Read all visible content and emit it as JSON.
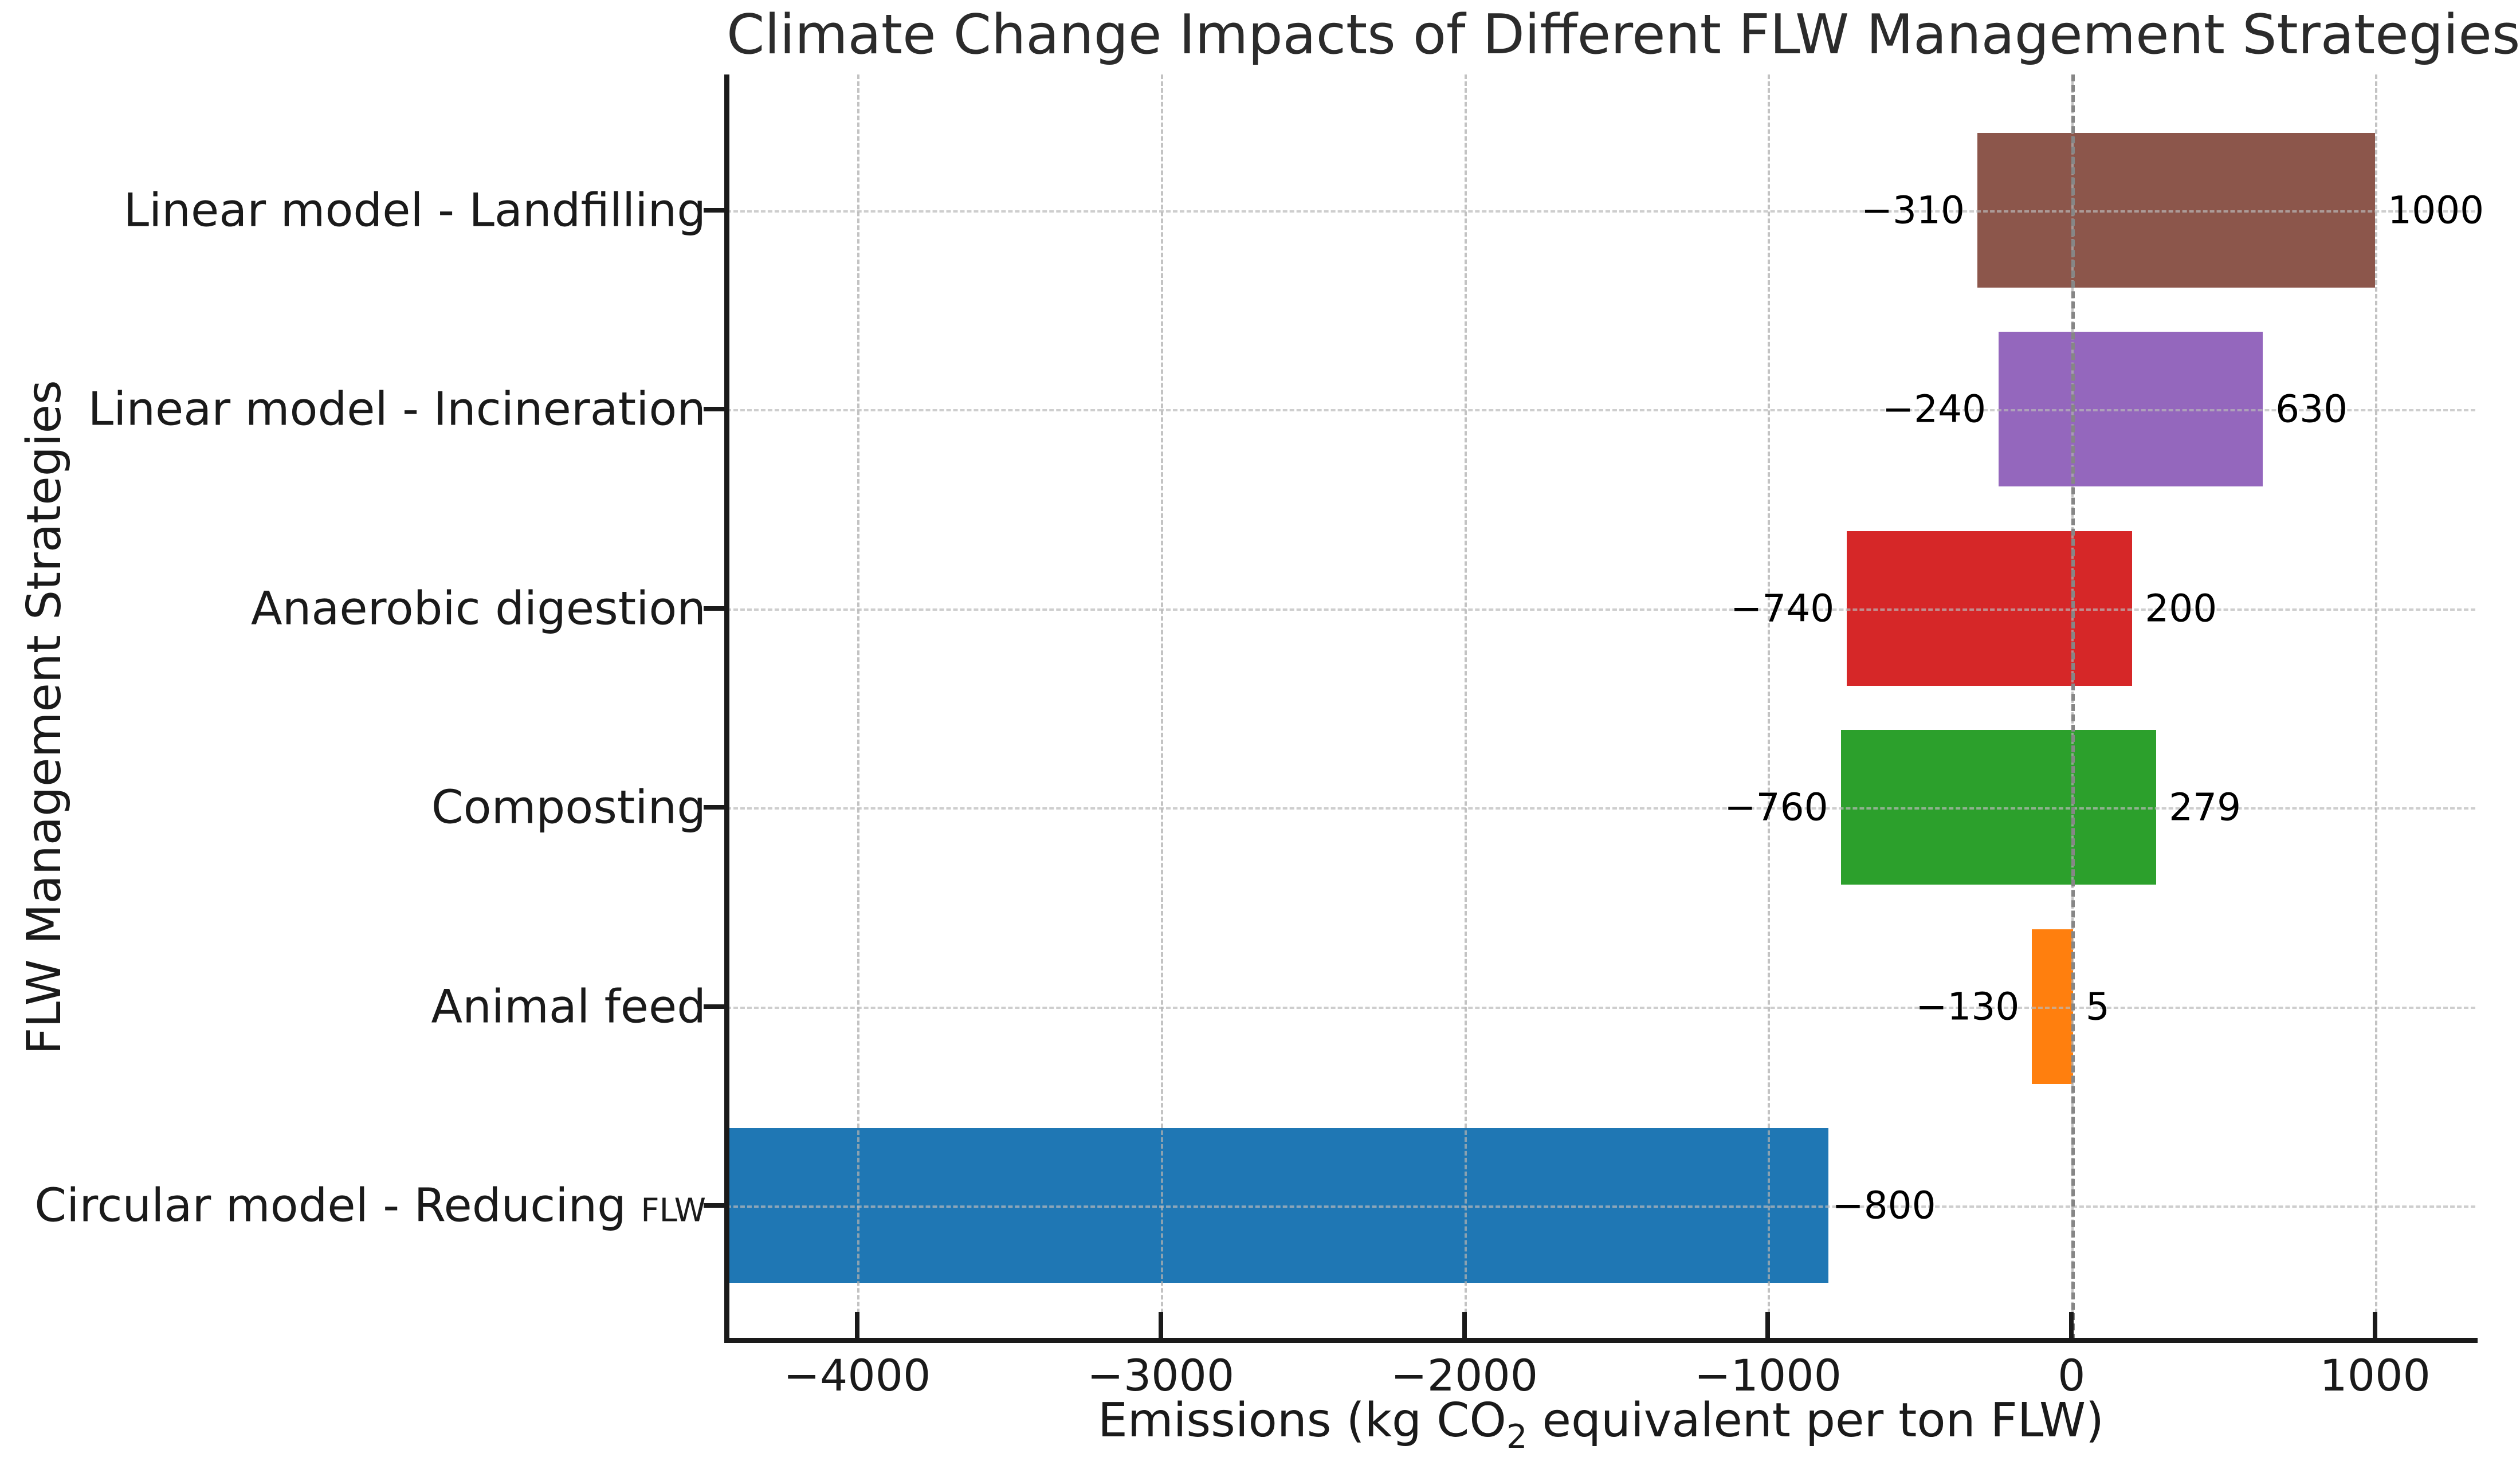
{
  "title": "Climate Change Impacts of Different FLW Management Strategies",
  "axes": {
    "x_label": {
      "pre": "Emissions (kg CO",
      "sub": "2",
      "post": " equivalent per ton FLW)"
    },
    "y_label": "FLW Management Strategies"
  },
  "chart_data": {
    "type": "bar",
    "orientation": "horizontal",
    "title": "Climate Change Impacts of Different FLW Management Strategies",
    "xlabel": "Emissions (kg CO2 equivalent per ton FLW)",
    "ylabel": "FLW Management Strategies",
    "grid": true,
    "legend": null,
    "x_axis": {
      "ticks": [
        -4000,
        -3000,
        -2000,
        -1000,
        0,
        1000
      ],
      "tick_labels": [
        "−4000",
        "−3000",
        "−2000",
        "−1000",
        "0",
        "1000"
      ],
      "range_shown": [
        -4430,
        1330
      ],
      "zero_line_at": 0
    },
    "bars": [
      {
        "category_main": "Linear model - Landfilling",
        "category_small_suffix": "",
        "low": -310,
        "high": 1000,
        "low_label": "−310",
        "high_label": "1000",
        "color": "#8c564b",
        "clipped_left": false
      },
      {
        "category_main": "Linear model - Incineration",
        "category_small_suffix": "",
        "low": -240,
        "high": 630,
        "low_label": "−240",
        "high_label": "630",
        "color": "#9467bd",
        "clipped_left": false
      },
      {
        "category_main": "Anaerobic digestion",
        "category_small_suffix": "",
        "low": -740,
        "high": 200,
        "low_label": "−740",
        "high_label": "200",
        "color": "#d62728",
        "clipped_left": false
      },
      {
        "category_main": "Composting",
        "category_small_suffix": "",
        "low": -760,
        "high": 279,
        "low_label": "−760",
        "high_label": "279",
        "color": "#2ca02c",
        "clipped_left": false
      },
      {
        "category_main": "Animal feed",
        "category_small_suffix": "",
        "low": -130,
        "high": 5,
        "low_label": "−130",
        "high_label": "5",
        "color": "#ff7f0e",
        "clipped_left": false
      },
      {
        "category_main": "Circular model - Reducing ",
        "category_small_suffix": "FLW",
        "low": null,
        "high": -800,
        "low_label": null,
        "high_label": "−800",
        "color": "#1f77b4",
        "clipped_left": true
      }
    ]
  }
}
